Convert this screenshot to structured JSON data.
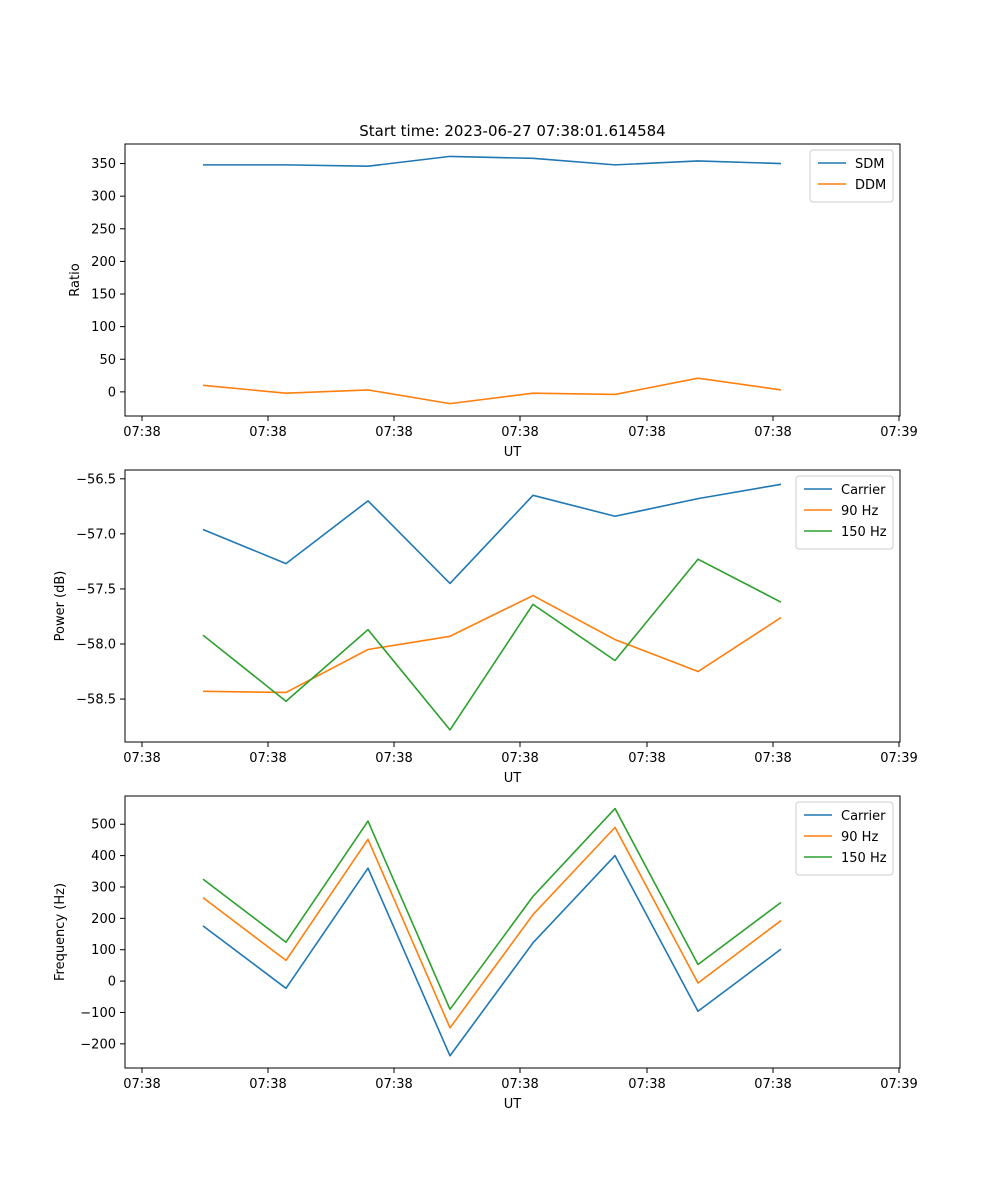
{
  "figure": {
    "title": "Start time: 2023-06-27 07:38:01.614584"
  },
  "colors": {
    "blue": "#1f77b4",
    "orange": "#ff7f0e",
    "green": "#2ca02c",
    "legend_border": "#cccccc"
  },
  "chart_data": [
    {
      "type": "line",
      "title": "Start time: 2023-06-27 07:38:01.614584",
      "xlabel": "UT",
      "ylabel": "Ratio",
      "x_ticks": [
        "07:38",
        "07:38",
        "07:38",
        "07:38",
        "07:38",
        "07:38",
        "07:39"
      ],
      "y_ticks": [
        0,
        50,
        100,
        150,
        200,
        250,
        300,
        350
      ],
      "ylim": [
        -37,
        380
      ],
      "legend": "upper right",
      "grid": false,
      "series": [
        {
          "name": "SDM",
          "color": "#1f77b4",
          "values": [
            348,
            348,
            346,
            361,
            358,
            348,
            354,
            350
          ]
        },
        {
          "name": "DDM",
          "color": "#ff7f0e",
          "values": [
            10,
            -2,
            3,
            -18,
            -2,
            -4,
            21,
            3
          ]
        }
      ]
    },
    {
      "type": "line",
      "title": "",
      "xlabel": "UT",
      "ylabel": "Power (dB)",
      "x_ticks": [
        "07:38",
        "07:38",
        "07:38",
        "07:38",
        "07:38",
        "07:38",
        "07:39"
      ],
      "y_ticks": [
        -58.5,
        -58.0,
        -57.5,
        -57.0,
        -56.5
      ],
      "y_tick_labels": [
        "−58.5",
        "−58.0",
        "−57.5",
        "−57.0",
        "−56.5"
      ],
      "ylim": [
        -58.89,
        -56.42
      ],
      "legend": "upper right",
      "grid": false,
      "series": [
        {
          "name": "Carrier",
          "color": "#1f77b4",
          "values": [
            -56.96,
            -57.27,
            -56.7,
            -57.45,
            -56.65,
            -56.84,
            -56.68,
            -56.55
          ]
        },
        {
          "name": "90 Hz",
          "color": "#ff7f0e",
          "values": [
            -58.43,
            -58.44,
            -58.05,
            -57.93,
            -57.56,
            -57.96,
            -58.25,
            -57.76
          ]
        },
        {
          "name": "150 Hz",
          "color": "#2ca02c",
          "values": [
            -57.92,
            -58.52,
            -57.87,
            -58.78,
            -57.64,
            -58.15,
            -57.23,
            -57.62
          ]
        }
      ]
    },
    {
      "type": "line",
      "title": "",
      "xlabel": "UT",
      "ylabel": "Frequency (Hz)",
      "x_ticks": [
        "07:38",
        "07:38",
        "07:38",
        "07:38",
        "07:38",
        "07:38",
        "07:39"
      ],
      "y_ticks": [
        -200,
        -100,
        0,
        100,
        200,
        300,
        400,
        500
      ],
      "y_tick_labels": [
        "−200",
        "−100",
        "0",
        "100",
        "200",
        "300",
        "400",
        "500"
      ],
      "ylim": [
        -277,
        590
      ],
      "legend": "upper right",
      "grid": false,
      "series": [
        {
          "name": "Carrier",
          "color": "#1f77b4",
          "values": [
            176,
            -23,
            360,
            -238,
            122,
            400,
            -96,
            102
          ]
        },
        {
          "name": "90 Hz",
          "color": "#ff7f0e",
          "values": [
            266,
            66,
            452,
            -149,
            212,
            490,
            -6,
            193
          ]
        },
        {
          "name": "150 Hz",
          "color": "#2ca02c",
          "values": [
            325,
            124,
            510,
            -90,
            270,
            550,
            53,
            251
          ]
        }
      ]
    }
  ]
}
